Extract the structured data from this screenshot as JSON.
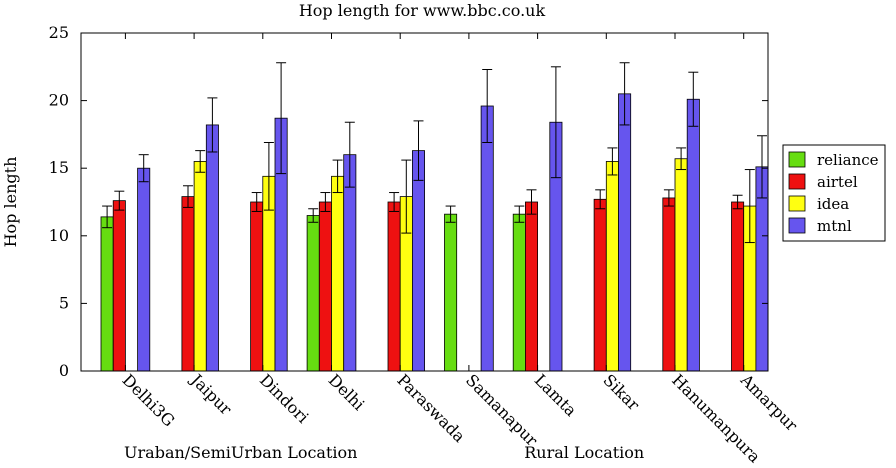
{
  "chart_data": {
    "type": "bar",
    "title": "Hop length for www.bbc.co.uk",
    "ylabel": "Hop length",
    "xlabel": "",
    "ylim": [
      0,
      25
    ],
    "yticks": [
      0,
      5,
      10,
      15,
      20,
      25
    ],
    "categories": [
      "Delhi3G",
      "Jaipur",
      "Dindori",
      "Delhi",
      "Paraswada",
      "Samanapur",
      "Lamta",
      "Sikar",
      "Hanumanpura",
      "Amarpur"
    ],
    "group_labels": [
      {
        "label": "Uraban/SemiUrban Location",
        "categories": [
          "Delhi3G",
          "Jaipur",
          "Dindori",
          "Delhi",
          "Paraswada"
        ]
      },
      {
        "label": "Rural Location",
        "categories": [
          "Samanapur",
          "Lamta",
          "Sikar",
          "Hanumanpura",
          "Amarpur"
        ]
      }
    ],
    "legend_position": "right",
    "series": [
      {
        "name": "reliance",
        "color": "#66dd11",
        "values": [
          11.4,
          null,
          null,
          11.5,
          null,
          11.6,
          11.6,
          null,
          null,
          null
        ],
        "errors": [
          0.8,
          null,
          null,
          0.5,
          null,
          0.6,
          0.6,
          null,
          null,
          null
        ]
      },
      {
        "name": "airtel",
        "color": "#ee1111",
        "values": [
          12.6,
          12.9,
          12.5,
          12.5,
          12.5,
          null,
          12.5,
          12.7,
          12.8,
          12.5
        ],
        "errors": [
          0.7,
          0.8,
          0.7,
          0.7,
          0.7,
          null,
          0.9,
          0.7,
          0.6,
          0.5
        ]
      },
      {
        "name": "idea",
        "color": "#ffff11",
        "values": [
          null,
          15.5,
          14.4,
          14.4,
          12.9,
          null,
          null,
          15.5,
          15.7,
          12.2
        ],
        "errors": [
          null,
          0.8,
          2.5,
          1.2,
          2.7,
          null,
          null,
          1.0,
          0.8,
          2.7
        ]
      },
      {
        "name": "mtnl",
        "color": "#6655ee",
        "values": [
          15.0,
          18.2,
          18.7,
          16.0,
          16.3,
          19.6,
          18.4,
          20.5,
          20.1,
          15.1
        ],
        "errors": [
          1.0,
          2.0,
          4.1,
          2.4,
          2.2,
          2.7,
          4.1,
          2.3,
          2.0,
          2.3
        ]
      }
    ]
  }
}
